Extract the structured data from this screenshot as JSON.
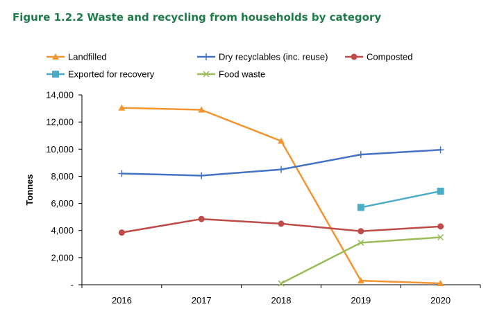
{
  "figure_title": "Figure 1.2.2 Waste and recycling from households by category",
  "chart_data": {
    "type": "line",
    "title": "Figure 1.2.2 Waste and recycling from households by category",
    "xlabel": "",
    "ylabel": "Tonnes",
    "x": [
      "2016",
      "2017",
      "2018",
      "2019",
      "2020"
    ],
    "ylim": [
      0,
      14000
    ],
    "y_ticks": [
      0,
      2000,
      4000,
      6000,
      8000,
      10000,
      12000,
      14000
    ],
    "y_tick_labels": [
      "-",
      "2,000",
      "4,000",
      "6,000",
      "8,000",
      "10,000",
      "12,000",
      "14,000"
    ],
    "grid": false,
    "legend_position": "top",
    "series": [
      {
        "name": "Landfilled",
        "color": "#f39533",
        "marker": "triangle",
        "values": [
          13050,
          12900,
          10600,
          300,
          100
        ]
      },
      {
        "name": "Dry recyclables (inc. reuse)",
        "color": "#4472c4",
        "marker": "plus",
        "values": [
          8200,
          8050,
          8500,
          9600,
          9950
        ]
      },
      {
        "name": "Composted",
        "color": "#be4b48",
        "marker": "circle",
        "values": [
          3850,
          4850,
          4500,
          3950,
          4300
        ]
      },
      {
        "name": "Exported for recovery",
        "color": "#4bacc6",
        "marker": "square",
        "values": [
          null,
          null,
          null,
          5700,
          6900
        ]
      },
      {
        "name": "Food waste",
        "color": "#9bbb59",
        "marker": "x",
        "values": [
          null,
          null,
          100,
          3100,
          3500
        ]
      }
    ]
  }
}
